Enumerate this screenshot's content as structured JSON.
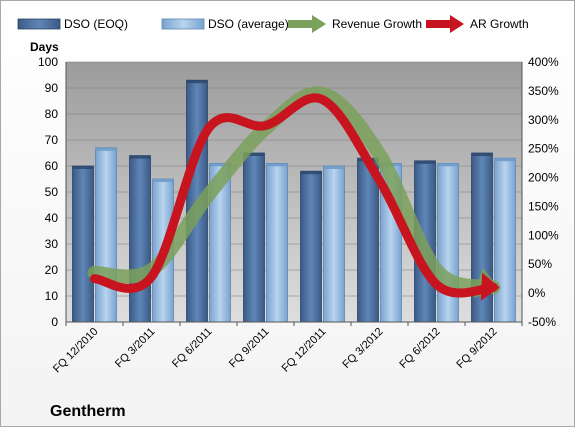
{
  "chart_data": {
    "type": "bar",
    "title": "",
    "company_label": "Gentherm",
    "ylabel": "Days",
    "ylim": [
      0,
      100
    ],
    "yticks": [
      0,
      10,
      20,
      30,
      40,
      50,
      60,
      70,
      80,
      90,
      100
    ],
    "y2lim": [
      -50,
      400
    ],
    "y2ticks": [
      "-50%",
      "0%",
      "50%",
      "100%",
      "150%",
      "200%",
      "250%",
      "300%",
      "350%",
      "400%"
    ],
    "y2tick_values": [
      -50,
      0,
      50,
      100,
      150,
      200,
      250,
      300,
      350,
      400
    ],
    "categories": [
      "FQ 12/2010",
      "FQ 3/2011",
      "FQ 6/2011",
      "FQ 9/2011",
      "FQ 12/2011",
      "FQ 3/2012",
      "FQ 6/2012",
      "FQ 9/2012"
    ],
    "grid": true,
    "legend_position": "top",
    "series": [
      {
        "name": "DSO (EOQ)",
        "kind": "bar",
        "color": "#4a6f9e",
        "values": [
          60,
          64,
          93,
          65,
          58,
          63,
          62,
          65
        ]
      },
      {
        "name": "DSO (average)",
        "kind": "bar",
        "color": "#8fb6df",
        "values": [
          67,
          55,
          61,
          61,
          60,
          61,
          61,
          63
        ]
      },
      {
        "name": "Revenue Growth",
        "kind": "line",
        "axis": "right",
        "color": "#7ba05b",
        "values": [
          35,
          40,
          170,
          285,
          345,
          240,
          40,
          10
        ]
      },
      {
        "name": "AR Growth",
        "kind": "line",
        "axis": "right",
        "color": "#c8141e",
        "values": [
          25,
          28,
          285,
          290,
          335,
          195,
          15,
          10
        ]
      }
    ]
  }
}
